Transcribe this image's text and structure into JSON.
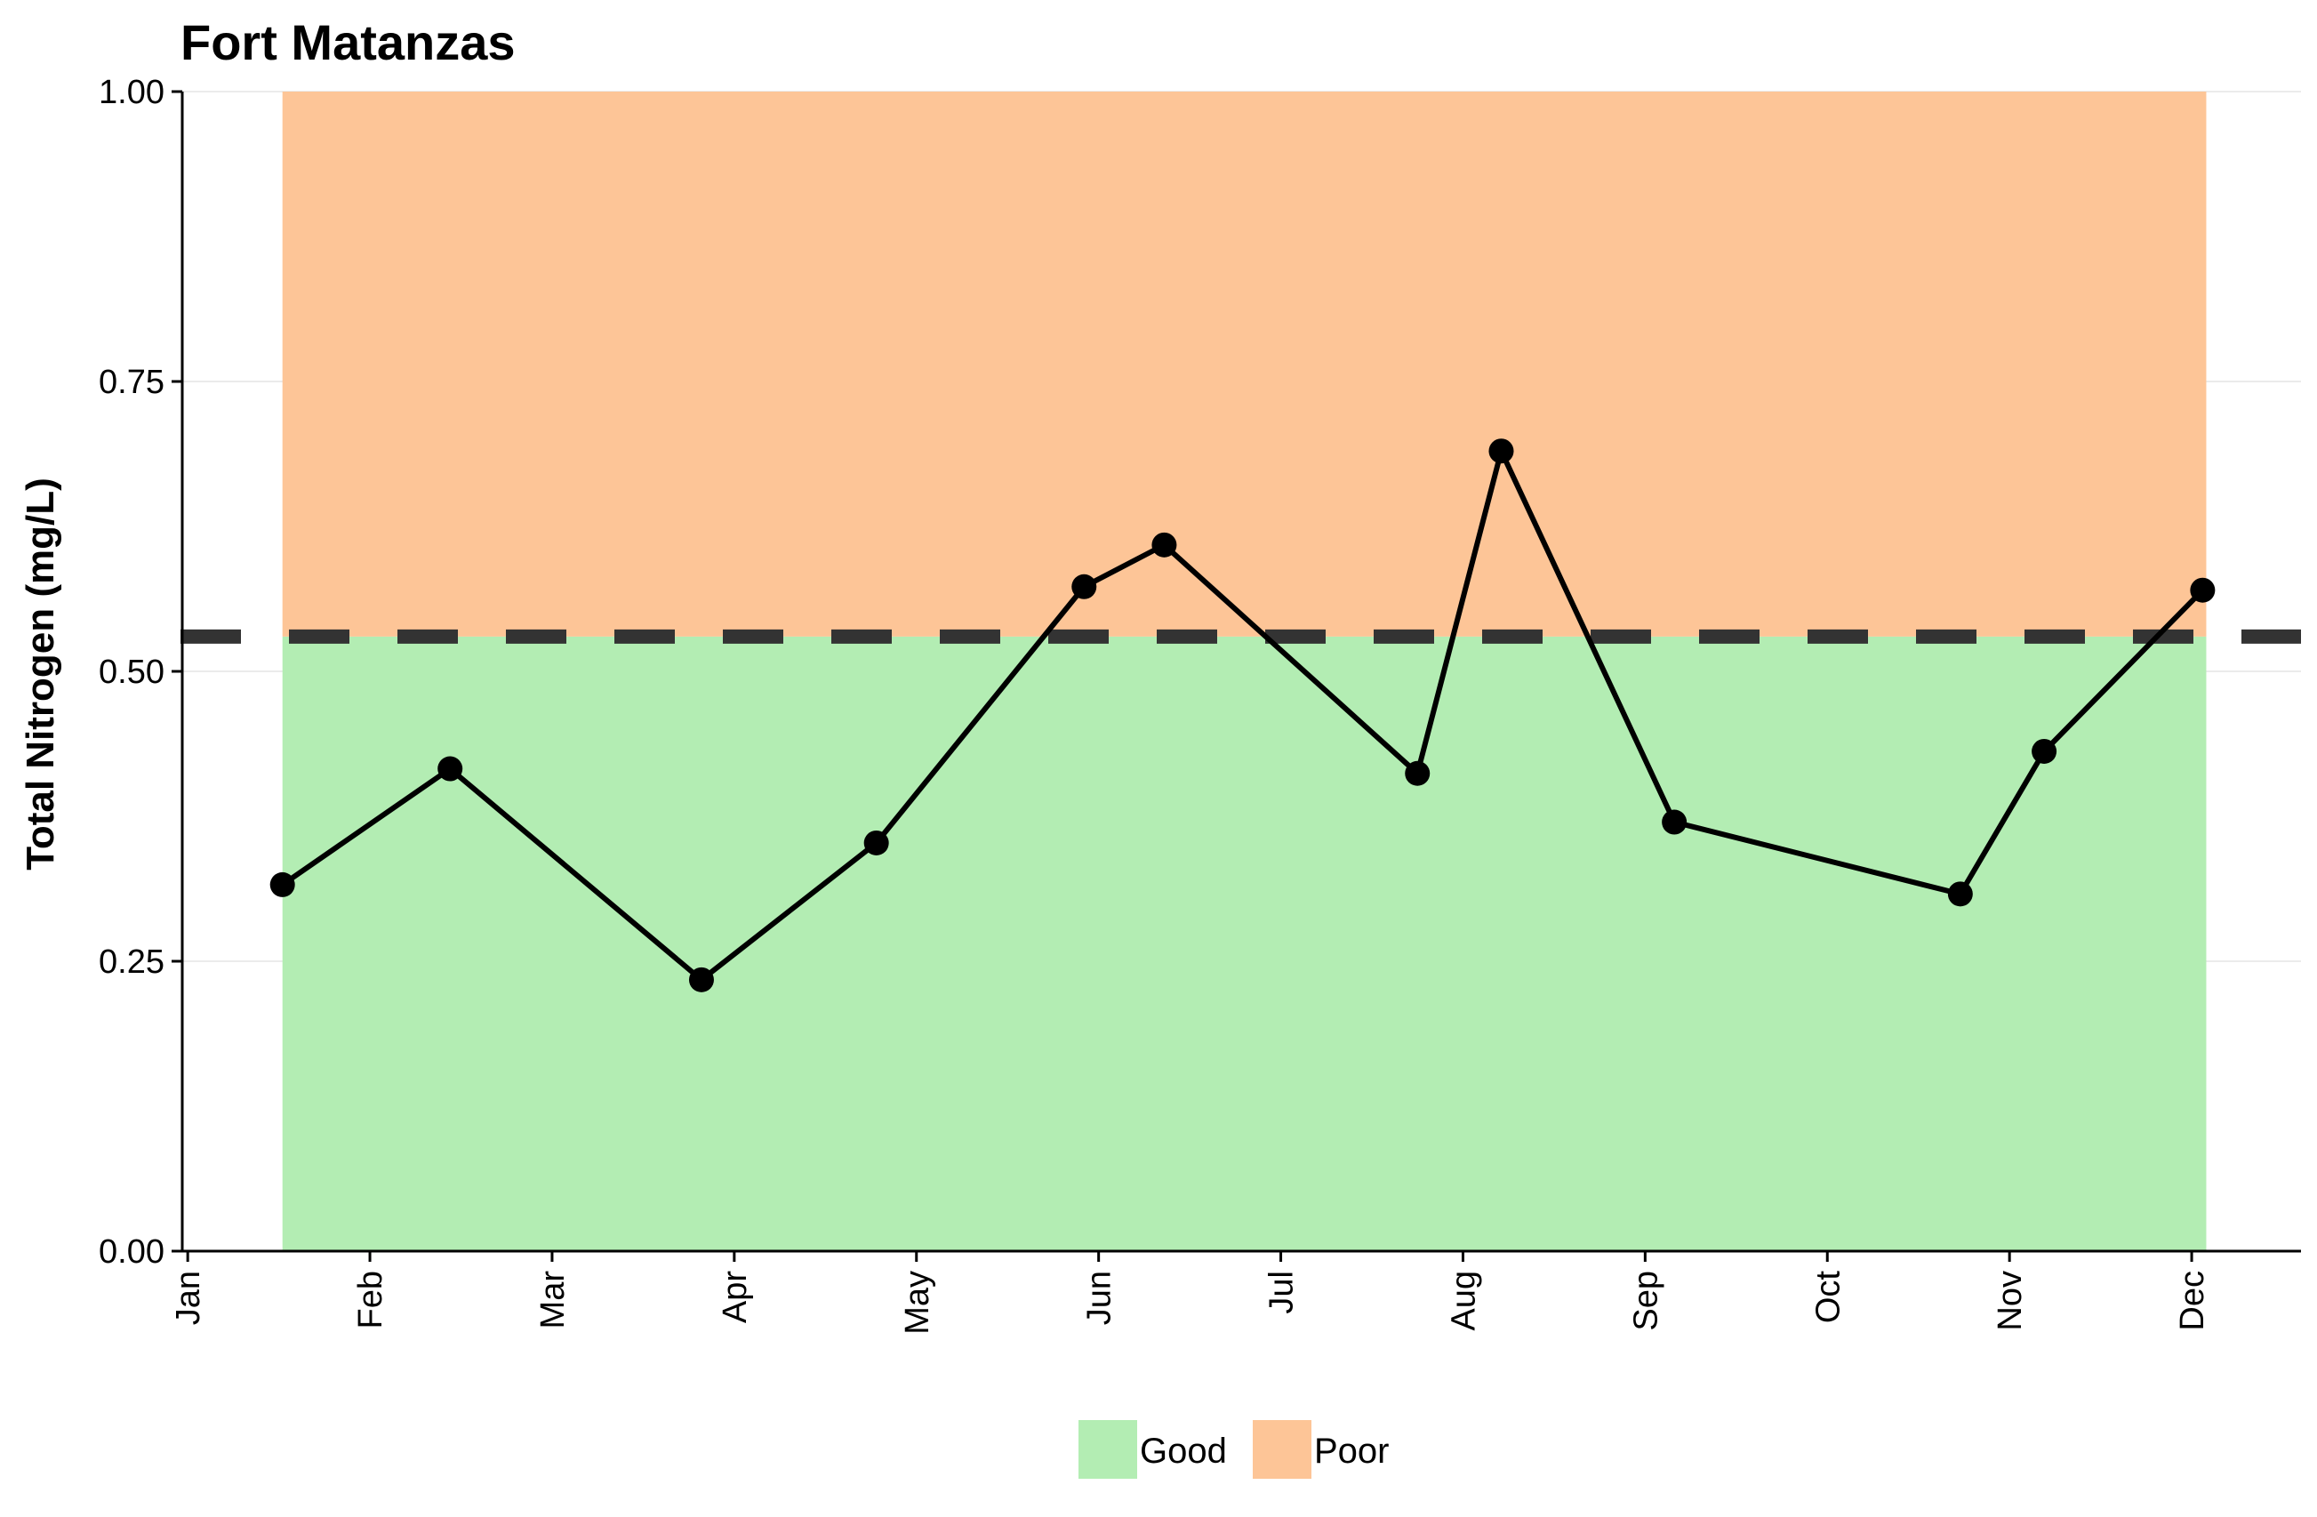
{
  "chart_data": {
    "type": "line",
    "title": "Fort Matanzas",
    "xlabel": "",
    "ylabel": "Total Nitrogen (mg/L)",
    "x_ticks": [
      "Jan",
      "Feb",
      "Mar",
      "Apr",
      "May",
      "Jun",
      "Jul",
      "Aug",
      "Sep",
      "Oct",
      "Nov",
      "Dec"
    ],
    "y_ticks": [
      "0.00",
      "0.25",
      "0.50",
      "0.75",
      "1.00"
    ],
    "ylim": [
      0,
      1
    ],
    "x_unit": "month",
    "xlim": [
      0.97,
      12.6
    ],
    "threshold": 0.53,
    "bands": [
      {
        "name": "Good",
        "from": 0,
        "to": 0.53,
        "color": "#b3edb3",
        "x_start": 1.52,
        "x_end": 12.08
      },
      {
        "name": "Poor",
        "from": 0.53,
        "to": 1.0,
        "color": "#fdc597",
        "x_start": 1.52,
        "x_end": 12.08
      }
    ],
    "series": [
      {
        "color": "#000000",
        "points": [
          {
            "x": 1.52,
            "y": 0.316
          },
          {
            "x": 2.44,
            "y": 0.416
          },
          {
            "x": 3.82,
            "y": 0.234
          },
          {
            "x": 4.78,
            "y": 0.352
          },
          {
            "x": 5.92,
            "y": 0.573
          },
          {
            "x": 6.36,
            "y": 0.609
          },
          {
            "x": 7.75,
            "y": 0.412
          },
          {
            "x": 8.21,
            "y": 0.69
          },
          {
            "x": 9.16,
            "y": 0.37
          },
          {
            "x": 10.73,
            "y": 0.308
          },
          {
            "x": 11.19,
            "y": 0.431
          },
          {
            "x": 12.06,
            "y": 0.57
          }
        ]
      }
    ],
    "legend": {
      "position": "bottom",
      "items": [
        "Good",
        "Poor"
      ]
    },
    "grid": true
  }
}
